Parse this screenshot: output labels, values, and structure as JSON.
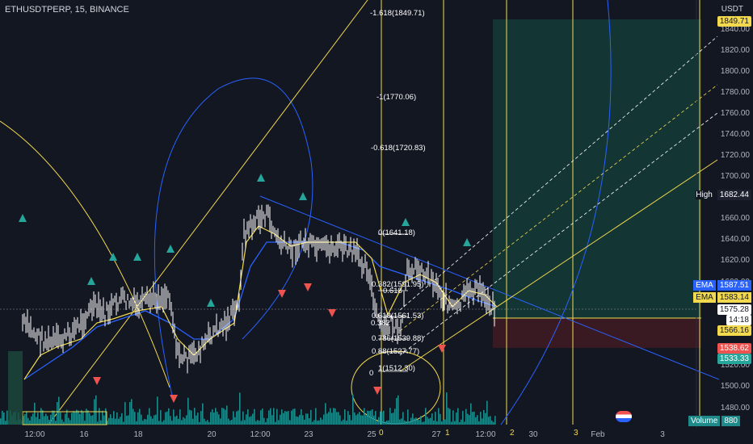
{
  "symbol": "ETHUSDTPERP, 15, BINANCE",
  "axis_unit": "USDT",
  "y_ticks": [
    "1840.00",
    "1820.00",
    "1800.00",
    "1780.00",
    "1760.00",
    "1740.00",
    "1720.00",
    "1700.00",
    "1660.00",
    "1640.00",
    "1620.00",
    "1600.00",
    "1520.00",
    "1500.00",
    "1480.00"
  ],
  "x_ticks": [
    "12:00",
    "16",
    "18",
    "20",
    "12:00",
    "23",
    "25",
    "27",
    "12:00",
    "30",
    "Feb",
    "3"
  ],
  "price_tags": {
    "top": "1849.71",
    "high_label": "High",
    "high": "1682.44",
    "ema1_label": "EMA",
    "ema1": "1587.51",
    "ema2_label": "EMA",
    "ema2": "1583.14",
    "current": "1575.28",
    "countdown": "14:18",
    "yellow": "1566.16",
    "red": "1538.62",
    "green": "1533.33",
    "volume_label": "Volume",
    "volume": "880"
  },
  "fib_labels": [
    "-1.618(1849.71)",
    "-1(1770.06)",
    "-0.618(1720.83)",
    "0(1641.18)",
    "0.382(1591.95)",
    "0.618(1561.53)",
    "0.382",
    "0.618",
    "0.786(1539.88)",
    "0.88(1527.77)",
    "1(1512.30)",
    "0"
  ],
  "fib_time_numbers": [
    "0",
    "1",
    "2",
    "3"
  ],
  "colors": {
    "background": "#131722",
    "candle": "#ffffff",
    "fib": "#f2d94e",
    "trend": "#2962ff",
    "up_marker": "#26a69a",
    "down_marker": "#ef5350",
    "volume": "#1f8a8a",
    "target_zone": "#163a3a",
    "stop_zone": "#3d1a22"
  }
}
